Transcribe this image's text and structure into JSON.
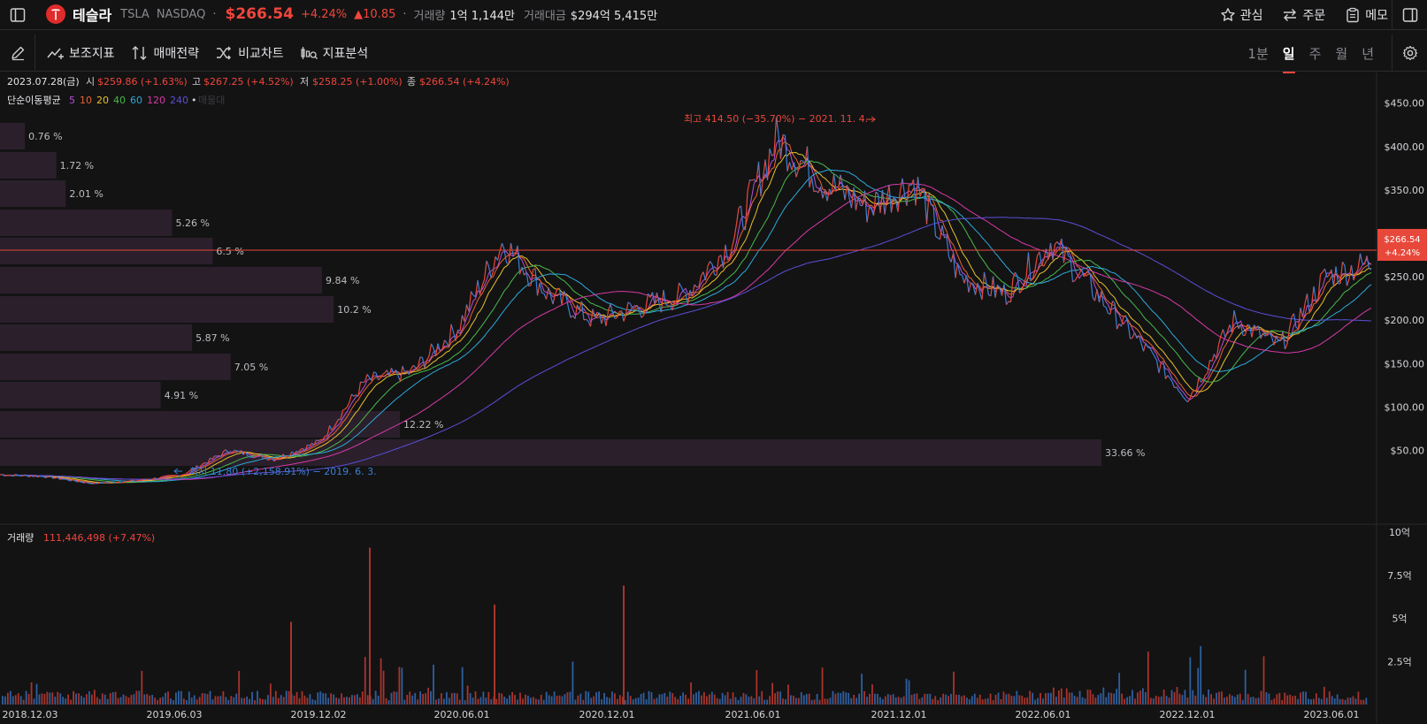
{
  "header": {
    "name": "테슬라",
    "symbol": "TSLA",
    "exchange": "NASDAQ",
    "price": "$266.54",
    "change_pct": "+4.24%",
    "change_abs": "▲10.85",
    "volume_label": "거래량",
    "volume_value": "1억 1,144만",
    "amount_label": "거래대금",
    "amount_value": "$294억 5,415만",
    "actions": [
      "관심",
      "주문",
      "메모"
    ]
  },
  "toolbar": {
    "items": [
      "보조지표",
      "매매전략",
      "비교차트",
      "지표분석"
    ],
    "periods": [
      "1분",
      "일",
      "주",
      "월",
      "년"
    ],
    "selected_period": "일"
  },
  "info": {
    "date": "2023.07.28(금)",
    "open_label": "시",
    "open": "$259.86 (+1.63%)",
    "high_label": "고",
    "high": "$267.25 (+4.52%)",
    "low_label": "저",
    "low": "$258.25 (+1.00%)",
    "close_label": "종",
    "close": "$266.54 (+4.24%)",
    "ma_label": "단순이동평균",
    "ma_periods": [
      "5",
      "10",
      "20",
      "40",
      "60",
      "120",
      "240"
    ],
    "ma_colors": [
      "#b84fd6",
      "#e8642e",
      "#e6c12a",
      "#49b84a",
      "#2ea9d9",
      "#d63aa6",
      "#5b4fd6"
    ],
    "ma_extra": "•",
    "ma_hidden": "매물대"
  },
  "annotations": {
    "high": "최고 414.50 (−35.70%) − 2021. 11. 4.",
    "low": "최저 11.80 (+2,158.91%) − 2019. 6. 3."
  },
  "price_axis": {
    "ticks": [
      "$450.00",
      "$400.00",
      "$350.00",
      "$300.00",
      "$250.00",
      "$200.00",
      "$150.00",
      "$100.00",
      "$50.00"
    ],
    "current_price": "$266.54",
    "current_change": "+4.24%"
  },
  "volume_profile": [
    "0.76 %",
    "1.72 %",
    "2.01 %",
    "5.26 %",
    "6.5 %",
    "9.84 %",
    "10.2 %",
    "5.87 %",
    "7.05 %",
    "4.91 %",
    "12.22 %",
    "33.66 %"
  ],
  "volume": {
    "label": "거래량",
    "value": "111,446,498 (+7.47%)",
    "ticks": [
      "10억",
      "7.5억",
      "5억",
      "2.5억"
    ]
  },
  "time_axis": [
    "2018.12.03",
    "2019.06.03",
    "2019.12.02",
    "2020.06.01",
    "2020.12.01",
    "2021.06.01",
    "2021.12.01",
    "2022.06.01",
    "2022.12.01",
    "2023.06.01"
  ],
  "chart_data": {
    "type": "line",
    "title": "",
    "xlabel": "",
    "ylabel": "",
    "ylim": [
      0,
      470
    ],
    "x": [
      "2018.12.03",
      "2019.03",
      "2019.06.03",
      "2019.09",
      "2019.12.02",
      "2020.02",
      "2020.04",
      "2020.06.01",
      "2020.08",
      "2020.10",
      "2020.12.01",
      "2021.01",
      "2021.03",
      "2021.05",
      "2021.06.01",
      "2021.08",
      "2021.10",
      "2021.11",
      "2021.12.01",
      "2022.01",
      "2022.03",
      "2022.05",
      "2022.06.01",
      "2022.08",
      "2022.10",
      "2022.12.01",
      "2023.01",
      "2023.03",
      "2023.05",
      "2023.06.01",
      "2023.07"
    ],
    "series": [
      {
        "name": "종가",
        "values": [
          22,
          20,
          12,
          15,
          22,
          50,
          40,
          60,
          130,
          140,
          190,
          290,
          230,
          200,
          215,
          230,
          290,
          410,
          360,
          330,
          360,
          250,
          230,
          290,
          230,
          170,
          110,
          200,
          170,
          250,
          266
        ]
      }
    ]
  }
}
